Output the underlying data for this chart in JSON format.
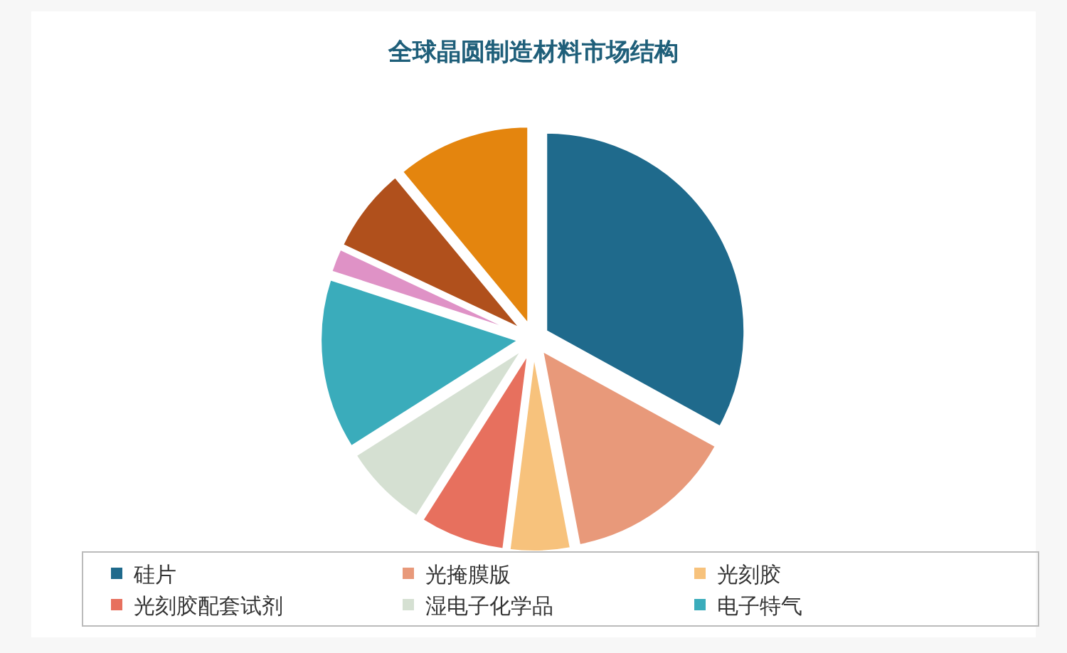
{
  "chart_data": {
    "type": "pie",
    "title": "全球晶圆制造材料市场结构",
    "categories": [
      "硅片",
      "光掩膜版",
      "光刻胶",
      "光刻胶配套试剂",
      "湿电子化学品",
      "电子特气",
      null,
      null,
      null
    ],
    "values": [
      33,
      14,
      5,
      7,
      7,
      14,
      2,
      7,
      11
    ],
    "colors": [
      "#1f6a8c",
      "#e8997a",
      "#f7c27c",
      "#e7705e",
      "#d5e0d2",
      "#3aacbb",
      "#df92c6",
      "#b0501c",
      "#e4850e"
    ],
    "legend": "bottom"
  }
}
